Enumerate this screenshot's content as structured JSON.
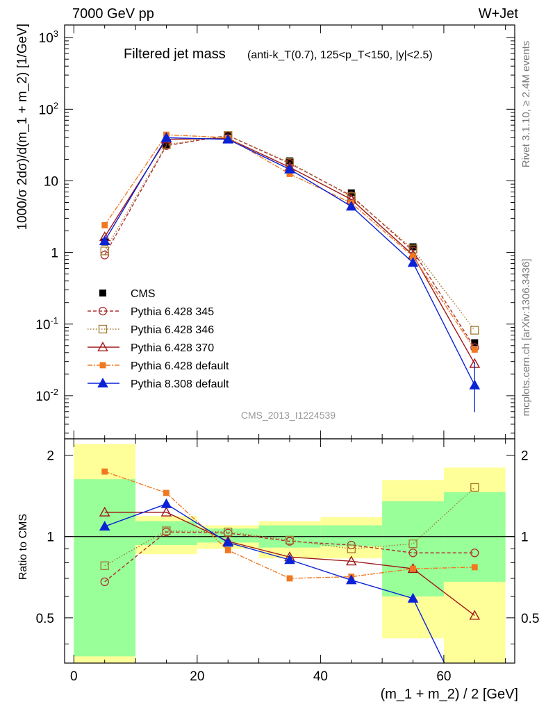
{
  "header": {
    "energy_label": "7000 GeV pp",
    "process_label": "W+Jet",
    "side_version": "Rivet 3.1.10, ≥ 2.4M events",
    "side_source": "mcplots.cern.ch [arXiv:1306.3436]",
    "analysis_id": "CMS_2013_I1224539"
  },
  "chart_data": {
    "type": "line",
    "title_main": "Filtered jet mass",
    "title_sub": "(anti-k_T(0.7), 125<p_T<150, |y|<2.5)",
    "xlabel": "(m_1 + m_2) / 2 [GeV]",
    "ylabel": "1000/σ 2dσ)/d(m_1 + m_2) [1/GeV]",
    "ratio_ylabel": "Ratio to CMS",
    "xlim": [
      -1.5,
      71.5
    ],
    "x_ticks": [
      "0",
      "20",
      "40",
      "60"
    ],
    "main_ylim": [
      0.0025,
      1500
    ],
    "main_yscale": "log",
    "main_y_ticks": [
      "10^3",
      "10^2",
      "10",
      "1",
      "10^-1",
      "10^-2"
    ],
    "ratio_ylim": [
      0.34,
      2.3
    ],
    "ratio_y_ticks": [
      "2",
      "1",
      "0.5"
    ],
    "legend_position": "lower-left",
    "x": [
      5,
      15,
      25,
      35,
      45,
      55,
      65
    ],
    "data": {
      "name": "CMS",
      "values": [
        1.4,
        31,
        43,
        19,
        6.8,
        1.2,
        0.055
      ],
      "bins": [
        [
          0,
          10
        ],
        [
          10,
          20
        ],
        [
          20,
          30
        ],
        [
          30,
          40
        ],
        [
          40,
          50
        ],
        [
          50,
          60
        ],
        [
          60,
          70
        ]
      ],
      "band_green": [
        [
          0.36,
          1.63
        ],
        [
          0.93,
          1.14
        ],
        [
          0.95,
          1.07
        ],
        [
          0.91,
          1.1
        ],
        [
          0.92,
          1.1
        ],
        [
          0.6,
          1.35
        ],
        [
          0.68,
          1.46
        ]
      ],
      "band_yellow": [
        [
          0.34,
          2.2
        ],
        [
          0.86,
          1.19
        ],
        [
          0.9,
          1.1
        ],
        [
          0.83,
          1.14
        ],
        [
          0.83,
          1.18
        ],
        [
          0.42,
          1.62
        ],
        [
          0.34,
          1.8
        ]
      ]
    },
    "series": [
      {
        "name": "Pythia 6.428 345",
        "color": "#b03030",
        "dash": "5,3",
        "marker": "circle-open",
        "values": [
          0.92,
          31,
          43,
          17.5,
          6.2,
          1.05,
          0.047
        ],
        "ratio": [
          0.68,
          1.04,
          1.03,
          0.96,
          0.93,
          0.87,
          0.87
        ]
      },
      {
        "name": "Pythia 6.428 346",
        "color": "#a07a30",
        "dash": "1.5,2.5",
        "marker": "square-open",
        "values": [
          1.05,
          32,
          43,
          18,
          6.0,
          1.12,
          0.082
        ],
        "ratio": [
          0.78,
          1.05,
          1.04,
          0.97,
          0.9,
          0.94,
          1.52
        ]
      },
      {
        "name": "Pythia 6.428 370",
        "color": "#a01818",
        "dash": "",
        "marker": "triangle-open",
        "values": [
          1.65,
          38,
          39,
          15.5,
          5.5,
          0.92,
          0.028
        ],
        "ratio": [
          1.23,
          1.23,
          0.96,
          0.84,
          0.81,
          0.76,
          0.51
        ]
      },
      {
        "name": "Pythia 6.428 default",
        "color": "#f07820",
        "dash": "7,2,2,2",
        "marker": "square-filled",
        "values": [
          2.4,
          44,
          40,
          12.5,
          4.9,
          0.88,
          0.044
        ],
        "ratio": [
          1.74,
          1.45,
          0.89,
          0.7,
          0.71,
          0.76,
          0.77
        ]
      },
      {
        "name": "Pythia 8.308 default",
        "color": "#0a22d6",
        "dash": "",
        "marker": "triangle-filled",
        "values": [
          1.45,
          40,
          38,
          14.5,
          4.4,
          0.72,
          0.014
        ],
        "ratio": [
          1.09,
          1.32,
          0.95,
          0.82,
          0.69,
          0.59,
          0.2
        ]
      }
    ]
  }
}
